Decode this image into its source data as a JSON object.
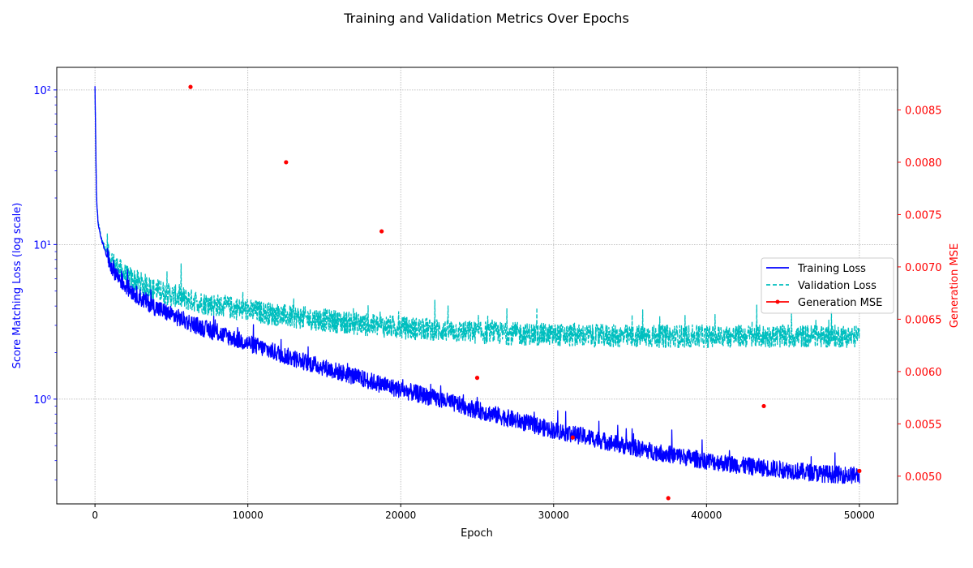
{
  "chart_data": {
    "type": "line",
    "title": "Training and Validation Metrics Over Epochs",
    "xlabel": "Epoch",
    "ylabel_left": "Score Matching Loss (log scale)",
    "ylabel_right": "Generation MSE",
    "xlim": [
      -2500,
      52500
    ],
    "xticks": [
      0,
      10000,
      20000,
      30000,
      40000,
      50000
    ],
    "xtick_labels": [
      "0",
      "10000",
      "20000",
      "30000",
      "40000",
      "50000"
    ],
    "y_left_scale": "log",
    "y_left_lim": [
      0.21,
      140
    ],
    "y_left_ticks": [
      1,
      10,
      100
    ],
    "y_left_tick_labels": [
      "10⁰",
      "10¹",
      "10²"
    ],
    "y_right_lim": [
      0.004735,
      0.008907
    ],
    "y_right_ticks": [
      0.005,
      0.0055,
      0.006,
      0.0065,
      0.007,
      0.0075,
      0.008,
      0.0085
    ],
    "y_right_tick_labels": [
      "0.0050",
      "0.0055",
      "0.0060",
      "0.0065",
      "0.0070",
      "0.0075",
      "0.0080",
      "0.0085"
    ],
    "grid": true,
    "legend_position": "center-right",
    "series": [
      {
        "name": "Training Loss",
        "axis": "left",
        "color": "#0000ff",
        "style": "solid",
        "x": [
          0,
          100,
          200,
          400,
          700,
          1000,
          1500,
          2000,
          3000,
          4000,
          5000,
          7000,
          10000,
          12500,
          15000,
          17500,
          20000,
          22500,
          25000,
          27500,
          30000,
          32500,
          35000,
          37500,
          40000,
          42500,
          45000,
          47500,
          50000
        ],
        "y": [
          105,
          20,
          14,
          11,
          8.8,
          7.5,
          6.2,
          5.4,
          4.5,
          3.9,
          3.5,
          2.9,
          2.3,
          1.9,
          1.6,
          1.35,
          1.15,
          1.0,
          0.85,
          0.73,
          0.63,
          0.56,
          0.49,
          0.44,
          0.4,
          0.37,
          0.35,
          0.33,
          0.32
        ],
        "noise": 0.13
      },
      {
        "name": "Validation Loss",
        "axis": "left",
        "color": "#00bfbf",
        "style": "dashed",
        "x": [
          0,
          100,
          200,
          400,
          700,
          1000,
          1500,
          2000,
          3000,
          4000,
          5000,
          7000,
          10000,
          12500,
          15000,
          17500,
          20000,
          25000,
          30000,
          35000,
          40000,
          45000,
          50000
        ],
        "y": [
          100,
          19,
          14,
          11,
          9.3,
          8.2,
          7.0,
          6.3,
          5.6,
          5.1,
          4.7,
          4.2,
          3.75,
          3.45,
          3.25,
          3.05,
          2.9,
          2.7,
          2.6,
          2.55,
          2.55,
          2.55,
          2.55
        ],
        "noise": 0.17
      },
      {
        "name": "Generation MSE",
        "axis": "right",
        "color": "#ff0000",
        "style": "markers",
        "x": [
          6250,
          12500,
          18750,
          25000,
          31250,
          37500,
          43750,
          50000
        ],
        "y": [
          0.00872,
          0.008,
          0.00734,
          0.00594,
          0.00537,
          0.00479,
          0.00567,
          0.00505
        ]
      }
    ]
  }
}
